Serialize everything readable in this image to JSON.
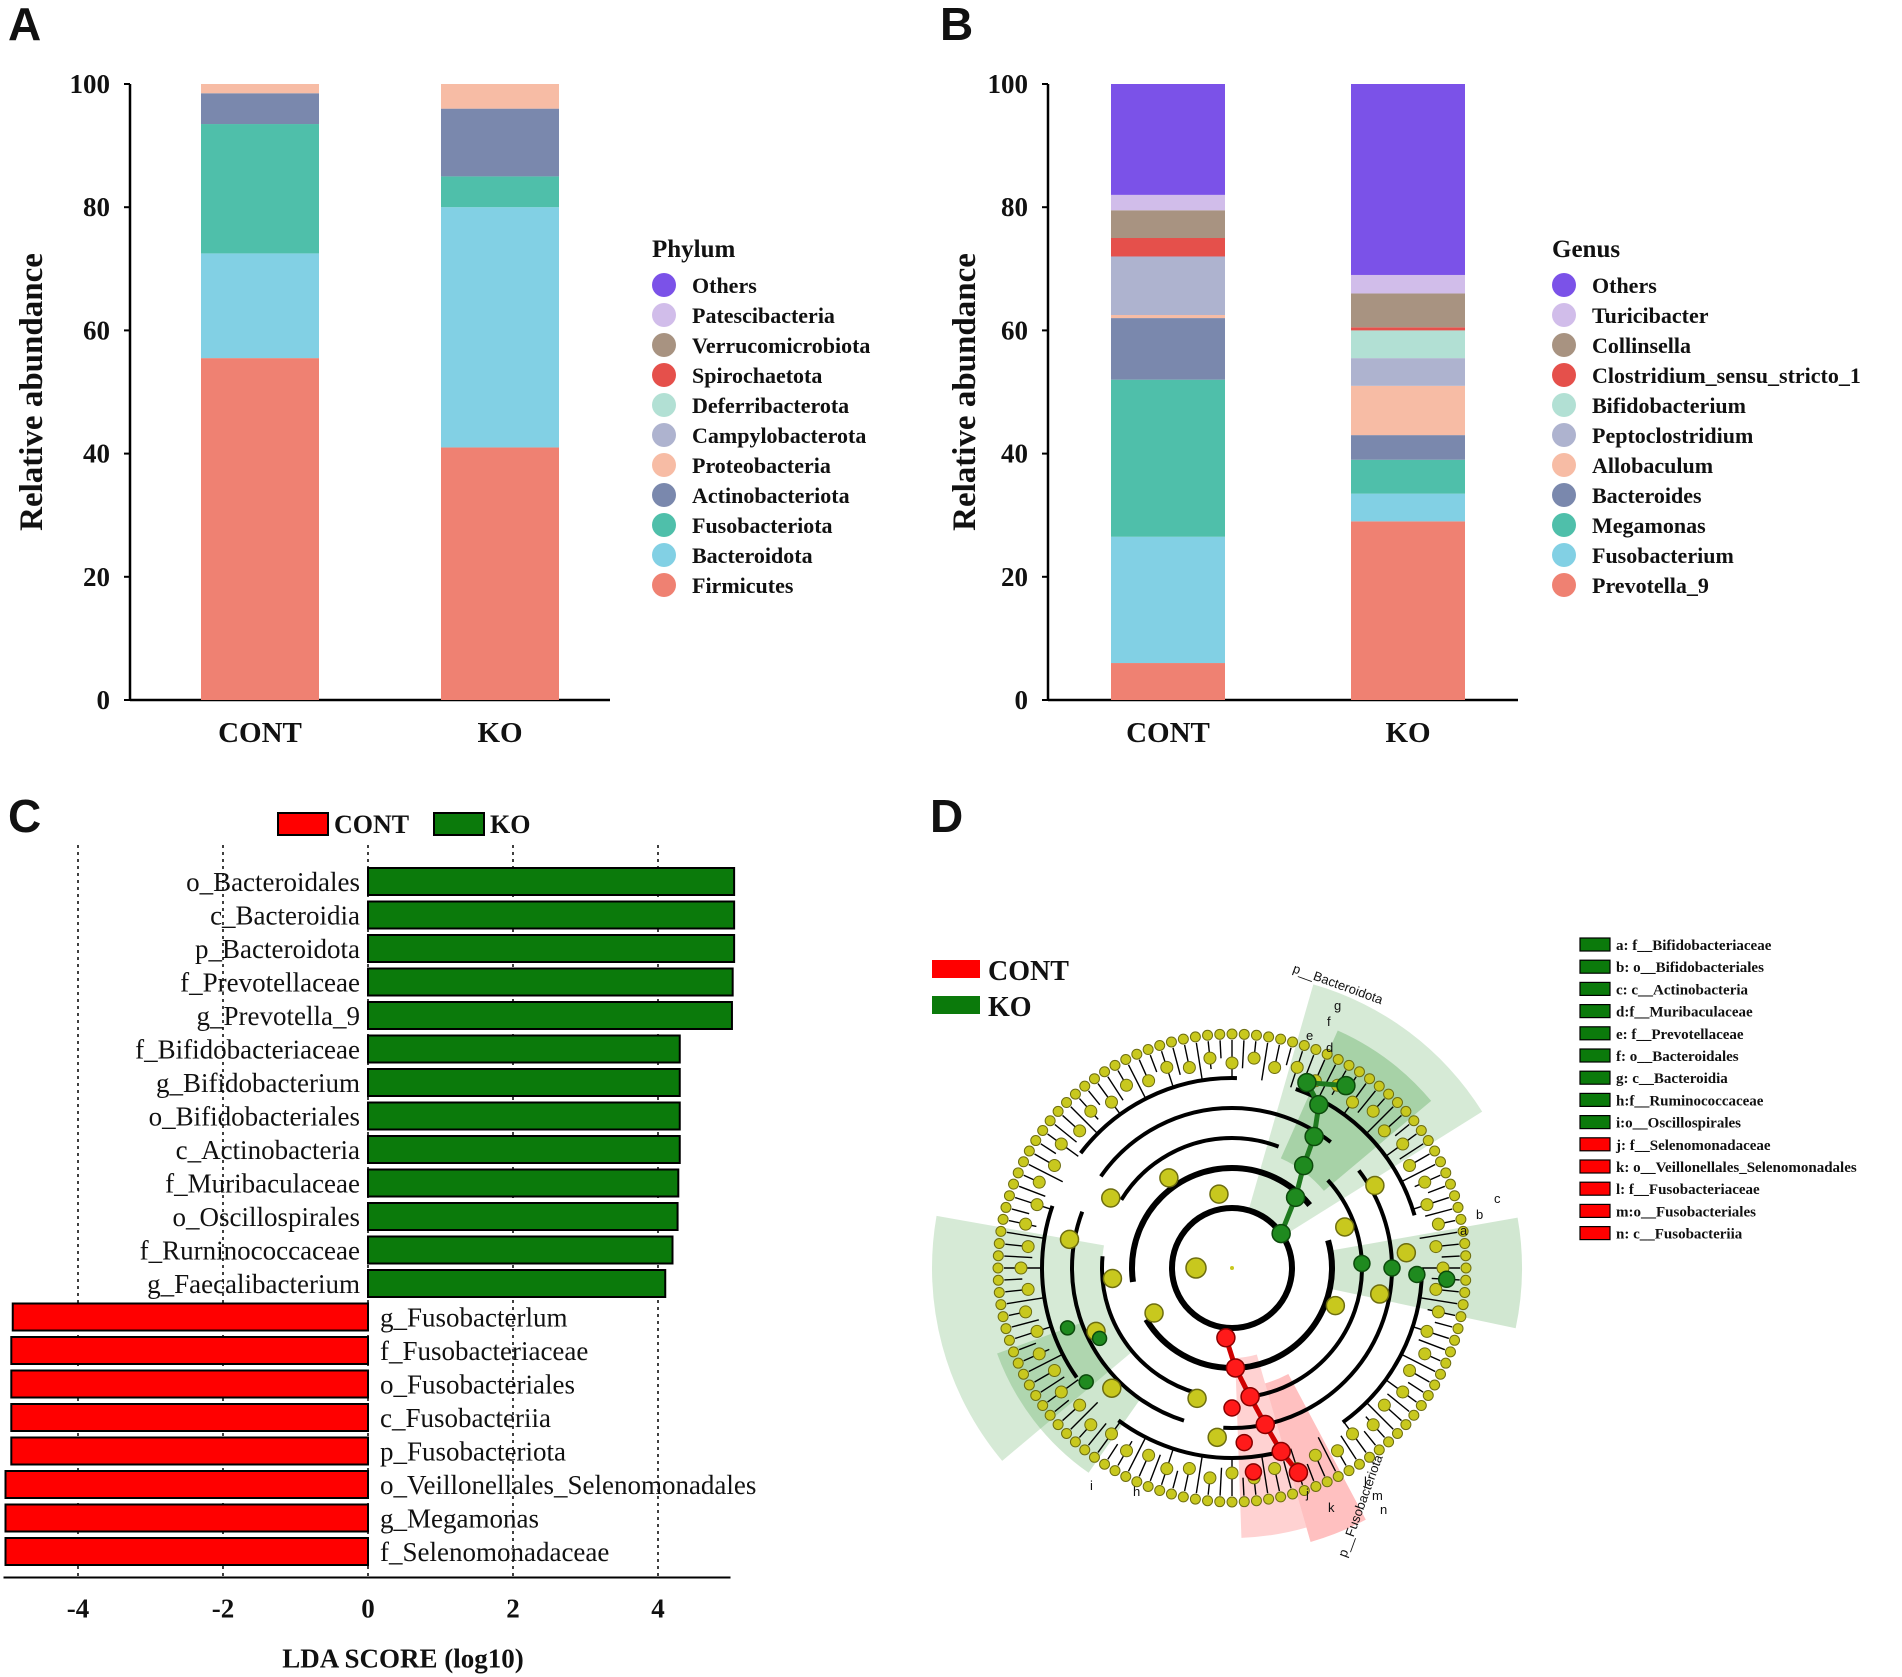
{
  "panels": [
    "A",
    "B",
    "C",
    "D"
  ],
  "chart_data": [
    {
      "type": "bar",
      "stacked": true,
      "panel": "A",
      "ylabel": "Relative abundance",
      "ylim": [
        0,
        100
      ],
      "yticks": [
        0,
        20,
        40,
        60,
        80,
        100
      ],
      "categories": [
        "CONT",
        "KO"
      ],
      "legend_title": "Phylum",
      "series": [
        {
          "name": "Firmicutes",
          "color": "#ef8172",
          "values": [
            55.5,
            41
          ]
        },
        {
          "name": "Bacteroidota",
          "color": "#82d0e4",
          "values": [
            17,
            39
          ]
        },
        {
          "name": "Fusobacteriota",
          "color": "#4fbfaa",
          "values": [
            21,
            5
          ]
        },
        {
          "name": "Actinobacteriota",
          "color": "#7a88ad",
          "values": [
            5,
            11
          ]
        },
        {
          "name": "Proteobacteria",
          "color": "#f7bca5",
          "values": [
            1.5,
            4
          ]
        },
        {
          "name": "Campylobacterota",
          "color": "#aeb3cf",
          "values": [
            0,
            0
          ]
        },
        {
          "name": "Deferribacterota",
          "color": "#b2e0d4",
          "values": [
            0,
            0
          ]
        },
        {
          "name": "Spirochaetota",
          "color": "#e5504b",
          "values": [
            0,
            0
          ]
        },
        {
          "name": "Verrucomicrobiota",
          "color": "#a89381",
          "values": [
            0,
            0
          ]
        },
        {
          "name": "Patescibacteria",
          "color": "#d1bdea",
          "values": [
            0,
            0
          ]
        },
        {
          "name": "Others",
          "color": "#7b52e8",
          "values": [
            0,
            0
          ]
        }
      ]
    },
    {
      "type": "bar",
      "stacked": true,
      "panel": "B",
      "ylabel": "Relative abundance",
      "ylim": [
        0,
        100
      ],
      "yticks": [
        0,
        20,
        40,
        60,
        80,
        100
      ],
      "categories": [
        "CONT",
        "KO"
      ],
      "legend_title": "Genus",
      "series": [
        {
          "name": "Prevotella_9",
          "color": "#ef8172",
          "values": [
            6,
            29
          ]
        },
        {
          "name": "Fusobacterium",
          "color": "#82d0e4",
          "values": [
            20.5,
            4.5
          ]
        },
        {
          "name": "Megamonas",
          "color": "#4fbfaa",
          "values": [
            25.5,
            5.5
          ]
        },
        {
          "name": "Bacteroides",
          "color": "#7a88ad",
          "values": [
            10,
            4
          ]
        },
        {
          "name": "Allobaculum",
          "color": "#f7bca5",
          "values": [
            0.5,
            8
          ]
        },
        {
          "name": "Peptoclostridium",
          "color": "#aeb3cf",
          "values": [
            9.5,
            4.5
          ]
        },
        {
          "name": "Bifidobacterium",
          "color": "#b2e0d4",
          "values": [
            0,
            4.5
          ]
        },
        {
          "name": "Clostridium_sensu_stricto_1",
          "color": "#e5504b",
          "values": [
            3,
            0.5
          ]
        },
        {
          "name": "Collinsella",
          "color": "#a89381",
          "values": [
            4.5,
            5.5
          ]
        },
        {
          "name": "Turicibacter",
          "color": "#d1bdea",
          "values": [
            2.5,
            3
          ]
        },
        {
          "name": "Others",
          "color": "#7b52e8",
          "values": [
            18,
            31
          ]
        }
      ]
    },
    {
      "type": "bar",
      "orientation": "horizontal",
      "panel": "C",
      "title": "",
      "xlabel": "LDA SCORE (log10)",
      "xlim": [
        -5,
        5
      ],
      "xticks": [
        -4,
        -2,
        0,
        2,
        4
      ],
      "groups": [
        {
          "name": "CONT",
          "color": "#ff0000"
        },
        {
          "name": "KO",
          "color": "#0b7a0b"
        }
      ],
      "features": [
        {
          "label": "o_Bacteroidales",
          "value": 5.05,
          "group": "KO"
        },
        {
          "label": "c_Bacteroidia",
          "value": 5.05,
          "group": "KO"
        },
        {
          "label": "p_Bacteroidota",
          "value": 5.05,
          "group": "KO"
        },
        {
          "label": "f_Prevotellaceae",
          "value": 5.03,
          "group": "KO"
        },
        {
          "label": "g_Prevotella_9",
          "value": 5.02,
          "group": "KO"
        },
        {
          "label": "f_Bifidobacteriaceae",
          "value": 4.3,
          "group": "KO"
        },
        {
          "label": "g_Bifidobacterium",
          "value": 4.3,
          "group": "KO"
        },
        {
          "label": "o_Bifidobacteriales",
          "value": 4.3,
          "group": "KO"
        },
        {
          "label": "c_Actinobacteria",
          "value": 4.3,
          "group": "KO"
        },
        {
          "label": "f_Muribaculaceae",
          "value": 4.28,
          "group": "KO"
        },
        {
          "label": "o_Oscillospirales",
          "value": 4.27,
          "group": "KO"
        },
        {
          "label": "f_Rurninococcaceae",
          "value": 4.2,
          "group": "KO"
        },
        {
          "label": "g_Faecalibacterium",
          "value": 4.1,
          "group": "KO"
        },
        {
          "label": "g_Fusobacterlum",
          "value": -4.9,
          "group": "CONT"
        },
        {
          "label": "f_Fusobacteriaceae",
          "value": -4.92,
          "group": "CONT"
        },
        {
          "label": "o_Fusobacteriales",
          "value": -4.92,
          "group": "CONT"
        },
        {
          "label": "c_Fusobacteriia",
          "value": -4.92,
          "group": "CONT"
        },
        {
          "label": "p_Fusobacteriota",
          "value": -4.92,
          "group": "CONT"
        },
        {
          "label": "o_Veillonellales_Selenomonadales",
          "value": -5.0,
          "group": "CONT"
        },
        {
          "label": "g_Megamonas",
          "value": -5.0,
          "group": "CONT"
        },
        {
          "label": "f_Selenomonadaceae",
          "value": -5.0,
          "group": "CONT"
        }
      ]
    },
    {
      "type": "cladogram",
      "panel": "D",
      "groups": [
        {
          "name": "CONT",
          "color": "#ff0000"
        },
        {
          "name": "KO",
          "color": "#0b7a0b"
        }
      ],
      "clade_labels": [
        "p__Bacteroidota",
        "p__Fusobacteriota",
        "g",
        "f",
        "e",
        "d",
        "c",
        "b",
        "a",
        "i",
        "h",
        "j",
        "k",
        "l",
        "m",
        "n"
      ],
      "legend": [
        {
          "text": "a: f__Bifidobacteriaceae",
          "group": "KO"
        },
        {
          "text": "b: o__Bifidobacteriales",
          "group": "KO"
        },
        {
          "text": "c: c__Actinobacteria",
          "group": "KO"
        },
        {
          "text": "d:f__Muribaculaceae",
          "group": "KO"
        },
        {
          "text": "e: f__Prevotellaceae",
          "group": "KO"
        },
        {
          "text": "f: o__Bacteroidales",
          "group": "KO"
        },
        {
          "text": "g: c__Bacteroidia",
          "group": "KO"
        },
        {
          "text": "h:f__Ruminococcaceae",
          "group": "KO"
        },
        {
          "text": "i:o__Oscillospirales",
          "group": "KO"
        },
        {
          "text": "j: f__Selenomonadaceae",
          "group": "CONT"
        },
        {
          "text": "k: o__Veillonellales_Selenomonadales",
          "group": "CONT"
        },
        {
          "text": "l: f__Fusobacteriaceae",
          "group": "CONT"
        },
        {
          "text": "m:o__Fusobacteriales",
          "group": "CONT"
        },
        {
          "text": "n: c__Fusobacteriia",
          "group": "CONT"
        }
      ]
    }
  ]
}
